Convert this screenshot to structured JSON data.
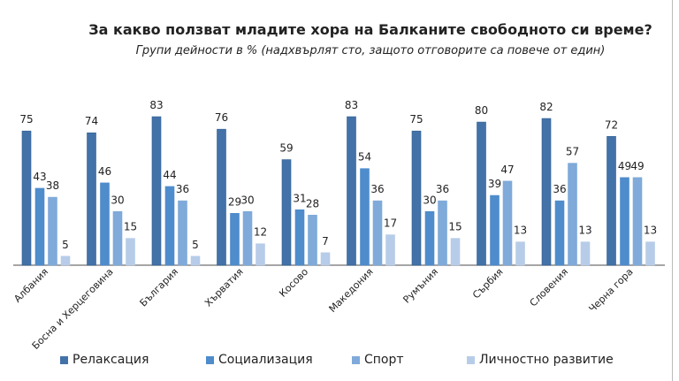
{
  "chart_data": {
    "type": "bar",
    "title": "За какво ползват младите хора на Балканите свободното си време?",
    "subtitle": "Групи дейности в % (надхвърлят сто, защото отговорите са повече от един)",
    "categories": [
      "Албания",
      "Босна и Херцеговина",
      "България",
      "Хърватия",
      "Косово",
      "Македония",
      "Румъния",
      "Сърбия",
      "Словения",
      "Черна гора"
    ],
    "series": [
      {
        "name": "Релаксация",
        "color": "#4372a8",
        "values": [
          75,
          74,
          83,
          76,
          59,
          83,
          75,
          80,
          82,
          72
        ]
      },
      {
        "name": "Социализация",
        "color": "#4e8ccc",
        "values": [
          43,
          46,
          44,
          29,
          31,
          54,
          30,
          39,
          36,
          49
        ]
      },
      {
        "name": "Спорт",
        "color": "#7faad9",
        "values": [
          38,
          30,
          36,
          30,
          28,
          36,
          36,
          47,
          57,
          49
        ]
      },
      {
        "name": "Личностно развитие",
        "color": "#b7cce8",
        "values": [
          5,
          15,
          5,
          12,
          7,
          17,
          15,
          13,
          13,
          13
        ]
      }
    ],
    "ylim": [
      0,
      85
    ],
    "grid": false,
    "data_labels": true,
    "legend_position": "bottom"
  }
}
